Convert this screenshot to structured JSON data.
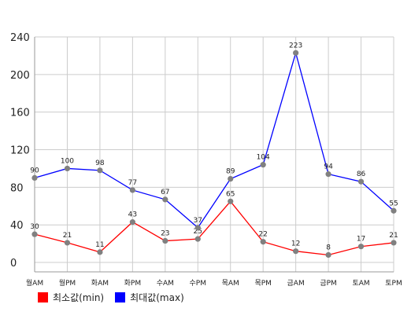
{
  "chart_data": {
    "type": "line",
    "categories": [
      "월AM",
      "월PM",
      "화AM",
      "화PM",
      "수AM",
      "수PM",
      "목AM",
      "목PM",
      "금AM",
      "금PM",
      "토AM",
      "토PM"
    ],
    "series": [
      {
        "name": "최소값(min)",
        "color": "#ff0000",
        "values": [
          30,
          21,
          11,
          43,
          23,
          25,
          65,
          22,
          12,
          8,
          17,
          21
        ]
      },
      {
        "name": "최대값(max)",
        "color": "#0000ff",
        "values": [
          90,
          100,
          98,
          77,
          67,
          37,
          89,
          104,
          223,
          94,
          86,
          55
        ]
      }
    ],
    "ylim": [
      -10,
      240
    ],
    "yticks": [
      0,
      40,
      80,
      120,
      160,
      200,
      240
    ],
    "grid": true,
    "marker_color": "#808080",
    "legend_position": "bottom-left",
    "title": "",
    "xlabel": "",
    "ylabel": ""
  }
}
